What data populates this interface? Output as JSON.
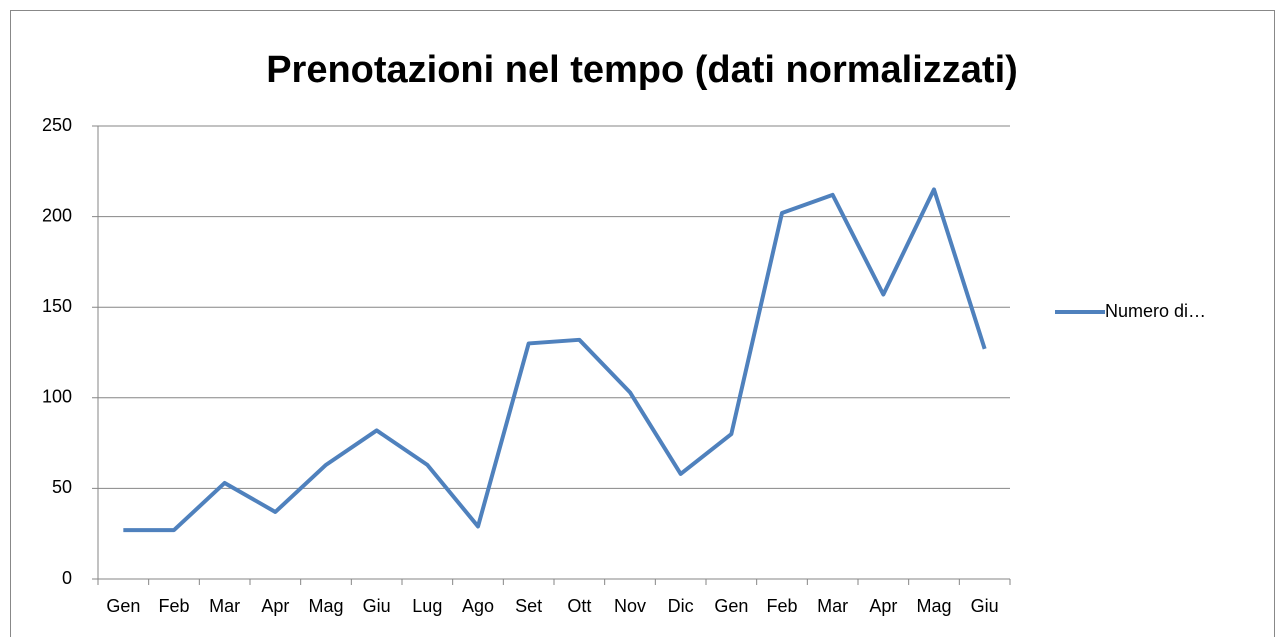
{
  "chart_data": {
    "type": "line",
    "title": "Prenotazioni nel tempo (dati normalizzati)",
    "categories": [
      "Gen",
      "Feb",
      "Mar",
      "Apr",
      "Mag",
      "Giu",
      "Lug",
      "Ago",
      "Set",
      "Ott",
      "Nov",
      "Dic",
      "Gen",
      "Feb",
      "Mar",
      "Apr",
      "Mag",
      "Giu"
    ],
    "series": [
      {
        "name": "Numero di…",
        "color": "#4f81bd",
        "values": [
          27,
          27,
          53,
          37,
          63,
          82,
          63,
          29,
          130,
          132,
          103,
          58,
          80,
          202,
          212,
          157,
          215,
          127
        ]
      }
    ],
    "ylim": [
      0,
      250
    ],
    "yticks": [
      0,
      50,
      100,
      150,
      200,
      250
    ],
    "grid": true,
    "legend": "right"
  }
}
